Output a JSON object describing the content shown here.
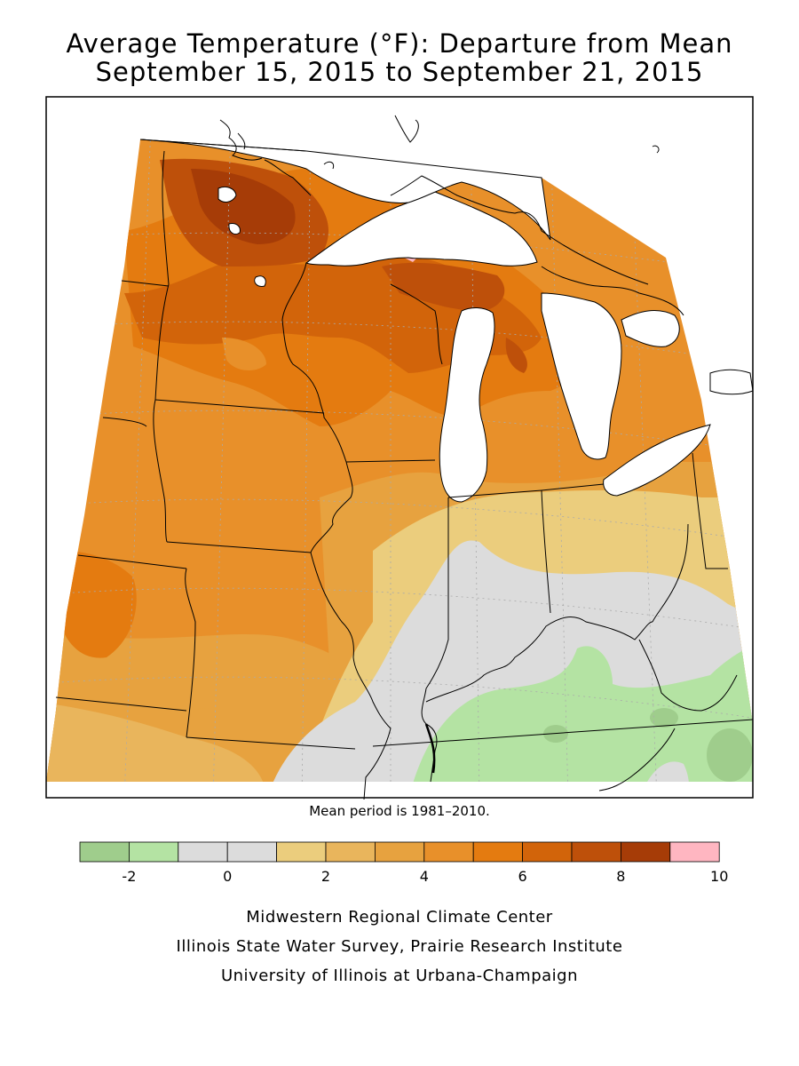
{
  "title": {
    "line1": "Average Temperature (°F): Departure from Mean",
    "line2": "September 15, 2015 to September 21, 2015"
  },
  "note": "Mean period is 1981–2010.",
  "legend": {
    "colors": [
      "#9fcd8c",
      "#b4e3a3",
      "#dcdcdc",
      "#dcdcdc",
      "#ebcd7d",
      "#e9b55c",
      "#e7a23f",
      "#e8902a",
      "#e47b10",
      "#d2640a",
      "#be500a",
      "#a63c07",
      "#ffb6c1"
    ],
    "tick_labels": [
      "-2",
      "0",
      "2",
      "4",
      "6",
      "8",
      "10"
    ]
  },
  "credits": [
    "Midwestern Regional Climate Center",
    "Illinois State Water Survey, Prairie Research Institute",
    "University of Illinois at Urbana-Champaign"
  ],
  "map": {
    "anomaly_colors": {
      "strong_warm": "#a63c07",
      "warm_8": "#be500a",
      "warm_7": "#d2640a",
      "warm_6": "#e47b10",
      "warm_5": "#e8902a",
      "warm_4": "#e7a23f",
      "warm_3": "#e9b55c",
      "warm_2": "#ebcd7d",
      "neutral": "#dcdcdc",
      "cool_1": "#b4e3a3",
      "cool_2": "#9fcd8c",
      "peak": "#ffb6c1"
    }
  }
}
